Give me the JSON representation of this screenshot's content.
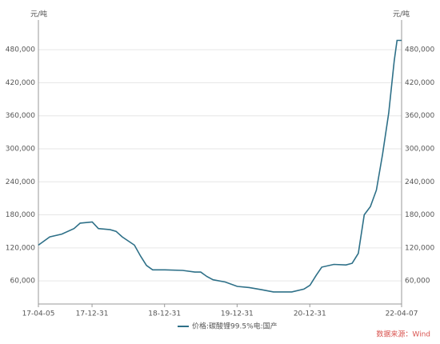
{
  "chart_data": {
    "type": "line",
    "y_label": "元/吨",
    "y2_label": "元/吨",
    "source": "数据来源：Wind",
    "x": [
      "17-04-05",
      "17-06-01",
      "17-08-01",
      "17-10-01",
      "17-11-01",
      "18-01-01",
      "18-02-01",
      "18-04-01",
      "18-05-01",
      "18-06-01",
      "18-08-01",
      "18-09-01",
      "18-10-01",
      "18-11-01",
      "19-01-01",
      "19-04-01",
      "19-06-01",
      "19-07-01",
      "19-08-01",
      "19-09-01",
      "19-11-01",
      "20-01-01",
      "20-03-01",
      "20-05-01",
      "20-07-01",
      "20-10-01",
      "20-12-01",
      "21-01-01",
      "21-02-01",
      "21-03-01",
      "21-05-01",
      "21-07-01",
      "21-08-01",
      "21-09-01",
      "21-10-01",
      "21-11-01",
      "21-12-01",
      "22-01-01",
      "22-02-01",
      "22-03-01",
      "22-03-15",
      "22-04-07"
    ],
    "series": [
      {
        "name": "价格:碳酸锂99.5%电:国产",
        "color": "#2e7088",
        "values": [
          125000,
          140000,
          145000,
          155000,
          165000,
          167000,
          155000,
          153000,
          150000,
          140000,
          125000,
          105000,
          88000,
          80000,
          80000,
          79000,
          76000,
          76000,
          68000,
          62000,
          58000,
          50000,
          48000,
          44000,
          40000,
          40000,
          45000,
          52000,
          70000,
          85000,
          90000,
          89000,
          92000,
          110000,
          180000,
          195000,
          225000,
          290000,
          365000,
          460000,
          497000,
          497000
        ]
      }
    ],
    "xlim": [
      "17-04-05",
      "22-04-07"
    ],
    "xticks": [
      "17-04-05",
      "17-12-31",
      "18-12-31",
      "19-12-31",
      "20-12-31",
      "22-04-07"
    ],
    "ylim": [
      18000,
      534000
    ],
    "yticks": [
      {
        "value": 60000,
        "label": "60,000"
      },
      {
        "value": 120000,
        "label": "120,000"
      },
      {
        "value": 180000,
        "label": "180,000"
      },
      {
        "value": 240000,
        "label": "240,000"
      },
      {
        "value": 300000,
        "label": "300,000"
      },
      {
        "value": 360000,
        "label": "360,000"
      },
      {
        "value": 420000,
        "label": "420,000"
      },
      {
        "value": 480000,
        "label": "480,000"
      }
    ],
    "grid": true
  }
}
